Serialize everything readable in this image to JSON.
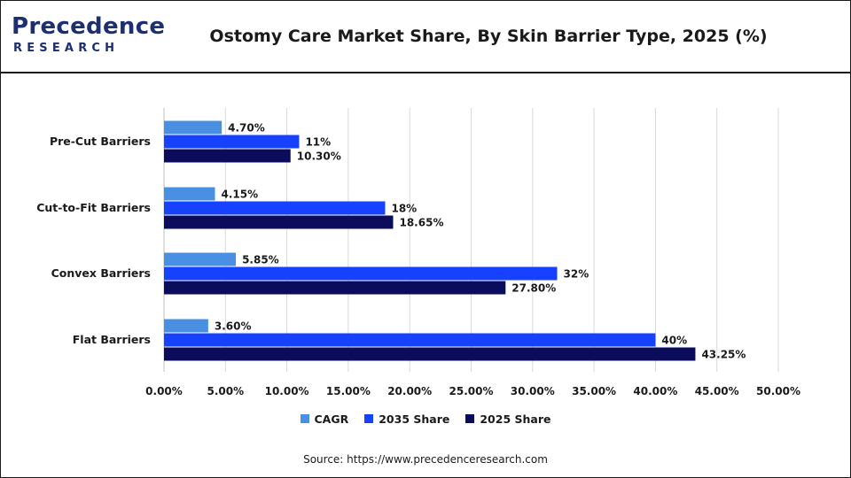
{
  "header": {
    "logo_main": "Precedence",
    "logo_sub": "RESEARCH",
    "title": "Ostomy Care Market Share, By Skin Barrier Type, 2025 (%)"
  },
  "source": "Source: https://www.precedenceresearch.com",
  "colors": {
    "CAGR": "#4a90e2",
    "2035 Share": "#1641ff",
    "2025 Share": "#0b0d5c"
  },
  "chart_data": {
    "type": "bar",
    "orientation": "horizontal",
    "title": "Ostomy Care Market Share, By Skin Barrier Type, 2025 (%)",
    "categories": [
      "Pre-Cut Barriers",
      "Cut-to-Fit Barriers",
      "Convex Barriers",
      "Flat Barriers"
    ],
    "series": [
      {
        "name": "CAGR",
        "values": [
          4.7,
          4.15,
          5.85,
          3.6
        ],
        "labels": [
          "4.70%",
          "4.15%",
          "5.85%",
          "3.60%"
        ]
      },
      {
        "name": "2035 Share",
        "values": [
          11,
          18,
          32,
          40
        ],
        "labels": [
          "11%",
          "18%",
          "32%",
          "40%"
        ]
      },
      {
        "name": "2025 Share",
        "values": [
          10.3,
          18.65,
          27.8,
          43.25
        ],
        "labels": [
          "10.30%",
          "18.65%",
          "27.80%",
          "43.25%"
        ]
      }
    ],
    "xlim": [
      0,
      50
    ],
    "xticks": [
      "0.00%",
      "5.00%",
      "10.00%",
      "15.00%",
      "20.00%",
      "25.00%",
      "30.00%",
      "35.00%",
      "40.00%",
      "45.00%",
      "50.00%"
    ],
    "grid": "vertical",
    "legend": "bottom-center"
  }
}
